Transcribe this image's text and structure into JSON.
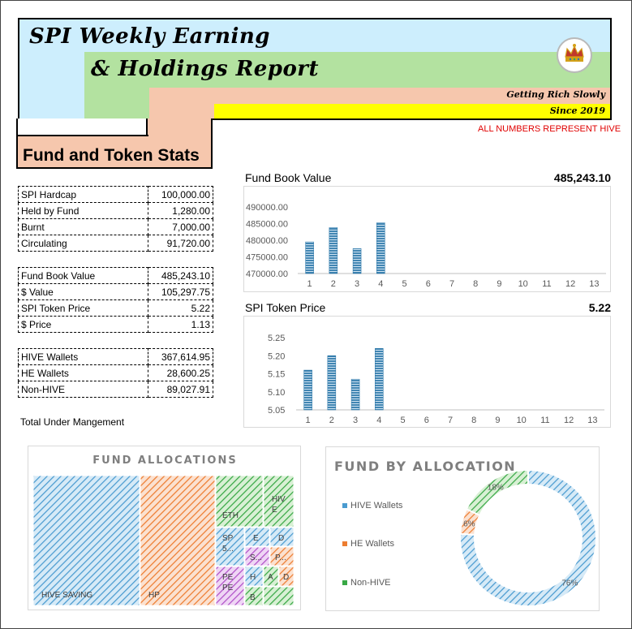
{
  "header": {
    "title_line1": "SPI Weekly Earning",
    "title_line2": "& Holdings Report",
    "tagline": "Getting Rich Slowly",
    "since": "Since 2019",
    "note": "ALL NUMBERS REPRESENT HIVE"
  },
  "section_title": "Fund and Token Stats",
  "stats": {
    "group1": [
      {
        "label": "SPI Hardcap",
        "value": "100,000.00"
      },
      {
        "label": "Held by Fund",
        "value": "1,280.00"
      },
      {
        "label": "Burnt",
        "value": "7,000.00"
      },
      {
        "label": "Circulating",
        "value": "91,720.00"
      }
    ],
    "group2": [
      {
        "label": "Fund Book Value",
        "value": "485,243.10"
      },
      {
        "label": "$ Value",
        "value": "105,297.75"
      },
      {
        "label": "SPI Token Price",
        "value": "5.22"
      },
      {
        "label": "$ Price",
        "value": "1.13"
      }
    ],
    "group3": [
      {
        "label": "HIVE Wallets",
        "value": "367,614.95"
      },
      {
        "label": "HE Wallets",
        "value": "28,600.25"
      },
      {
        "label": "Non-HIVE",
        "value": "89,027.91"
      }
    ],
    "total_label": "Total Under Mangement"
  },
  "colors": {
    "bar": "#2e75b6",
    "hive": "#4a9bd0",
    "he": "#ed7d31",
    "nonhive": "#38a845",
    "purple": "#b04fc8"
  },
  "chart_data": [
    {
      "type": "bar",
      "title": "Fund Book Value",
      "headline_value": "485,243.10",
      "categories": [
        "1",
        "2",
        "3",
        "4",
        "5",
        "6",
        "7",
        "8",
        "9",
        "10",
        "11",
        "12",
        "13"
      ],
      "values": [
        479500,
        483800,
        477500,
        485243.1,
        null,
        null,
        null,
        null,
        null,
        null,
        null,
        null,
        null
      ],
      "ylim": [
        470000,
        490000
      ],
      "yticks": [
        "470000.00",
        "475000.00",
        "480000.00",
        "485000.00",
        "490000.00"
      ],
      "grid": false
    },
    {
      "type": "bar",
      "title": "SPI Token Price",
      "headline_value": "5.22",
      "categories": [
        "1",
        "2",
        "3",
        "4",
        "5",
        "6",
        "7",
        "8",
        "9",
        "10",
        "11",
        "12",
        "13"
      ],
      "values": [
        5.16,
        5.2,
        5.135,
        5.22,
        null,
        null,
        null,
        null,
        null,
        null,
        null,
        null,
        null
      ],
      "ylim": [
        5.05,
        5.25
      ],
      "yticks": [
        "5.05",
        "5.10",
        "5.15",
        "5.20",
        "5.25"
      ],
      "grid": false
    },
    {
      "type": "treemap",
      "title": "FUND ALLOCATIONS",
      "labels": [
        "HIVE SAVING",
        "HP",
        "ETH",
        "HIVE",
        "SP 5...",
        "E",
        "D",
        "S...",
        "P...",
        "PE PE",
        "H",
        "A",
        "D",
        "B"
      ]
    },
    {
      "type": "pie",
      "title": "FUND BY ALLOCATION",
      "labels": [
        "HIVE Wallets",
        "HE Wallets",
        "Non-HIVE"
      ],
      "values": [
        76,
        6,
        18
      ],
      "value_labels": [
        "76%",
        "6%",
        "18%"
      ],
      "legend": "left"
    }
  ]
}
